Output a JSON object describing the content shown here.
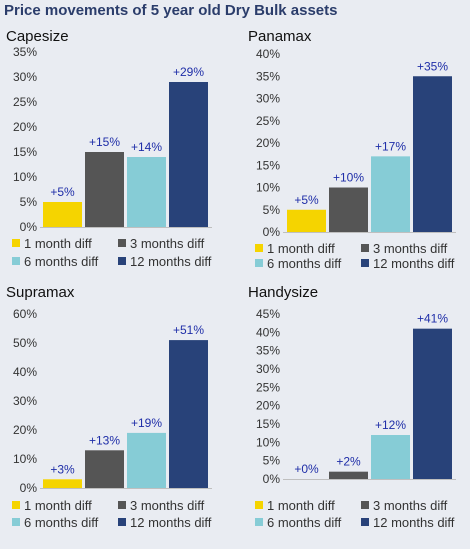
{
  "title": "Price movements of 5 year old Dry Bulk assets",
  "legend": [
    {
      "label": "1 month diff",
      "color": "#f5d400"
    },
    {
      "label": "3 months diff",
      "color": "#555555"
    },
    {
      "label": "6 months diff",
      "color": "#86ccd6"
    },
    {
      "label": "12 months diff",
      "color": "#284279"
    }
  ],
  "chart_data": [
    {
      "type": "bar",
      "title": "Capesize",
      "categories": [
        "1 month diff",
        "3 months diff",
        "6 months diff",
        "12 months diff"
      ],
      "values": [
        5,
        15,
        14,
        29
      ],
      "data_labels": [
        "+5%",
        "+15%",
        "+14%",
        "+29%"
      ],
      "ylim": [
        0,
        35
      ],
      "yticks": [
        "0%",
        "5%",
        "10%",
        "15%",
        "20%",
        "25%",
        "30%",
        "35%"
      ],
      "xlabel": "",
      "ylabel": "",
      "legend_position": "bottom"
    },
    {
      "type": "bar",
      "title": "Panamax",
      "categories": [
        "1 month diff",
        "3 months diff",
        "6 months diff",
        "12 months diff"
      ],
      "values": [
        5,
        10,
        17,
        35
      ],
      "data_labels": [
        "+5%",
        "+10%",
        "+17%",
        "+35%"
      ],
      "ylim": [
        0,
        40
      ],
      "yticks": [
        "0%",
        "5%",
        "10%",
        "15%",
        "20%",
        "25%",
        "30%",
        "35%",
        "40%"
      ],
      "xlabel": "",
      "ylabel": "",
      "legend_position": "bottom"
    },
    {
      "type": "bar",
      "title": "Supramax",
      "categories": [
        "1 month diff",
        "3 months diff",
        "6 months diff",
        "12 months diff"
      ],
      "values": [
        3,
        13,
        19,
        51
      ],
      "data_labels": [
        "+3%",
        "+13%",
        "+19%",
        "+51%"
      ],
      "ylim": [
        0,
        60
      ],
      "yticks": [
        "0%",
        "10%",
        "20%",
        "30%",
        "40%",
        "50%",
        "60%"
      ],
      "xlabel": "",
      "ylabel": "",
      "legend_position": "bottom"
    },
    {
      "type": "bar",
      "title": "Handysize",
      "categories": [
        "1 month diff",
        "3 months diff",
        "6 months diff",
        "12 months diff"
      ],
      "values": [
        0,
        2,
        12,
        41
      ],
      "data_labels": [
        "+0%",
        "+2%",
        "+12%",
        "+41%"
      ],
      "ylim": [
        0,
        45
      ],
      "yticks": [
        "0%",
        "5%",
        "10%",
        "15%",
        "20%",
        "25%",
        "30%",
        "35%",
        "40%",
        "45%"
      ],
      "xlabel": "",
      "ylabel": "",
      "legend_position": "bottom"
    }
  ]
}
